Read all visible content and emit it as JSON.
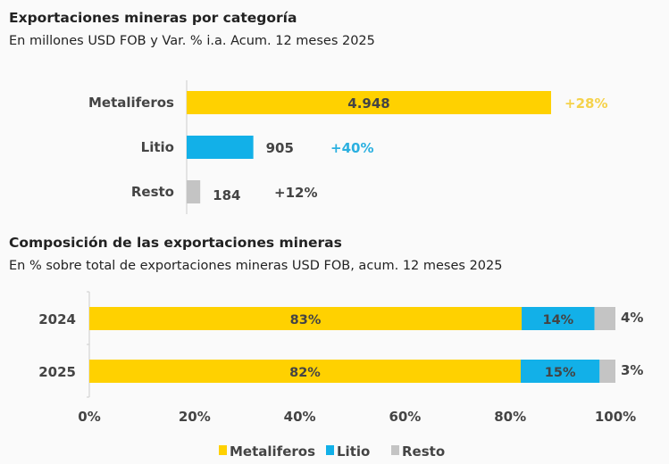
{
  "chart_data": [
    {
      "type": "bar",
      "orientation": "horizontal",
      "title": "Exportaciones mineras por categoría",
      "subtitle": "En millones USD FOB y Var. % i.a. Acum. 12 meses 2025",
      "categories": [
        "Metaliferos",
        "Litio",
        "Resto"
      ],
      "values": [
        4948,
        905,
        184
      ],
      "value_labels": [
        "4.948",
        "905",
        "184"
      ],
      "variation_labels": [
        "+28%",
        "+40%",
        "+12%"
      ],
      "colors": [
        "#FFD100",
        "#12B0E8",
        "#C4C4C4"
      ],
      "variation_colors": [
        "#F5D24A",
        "#2BB0E0",
        "#444444"
      ],
      "grid": false
    },
    {
      "type": "bar",
      "orientation": "horizontal",
      "stacked": true,
      "title": "Composición de las exportaciones mineras",
      "subtitle": "En % sobre total de exportaciones mineras USD FOB, acum. 12 meses 2025",
      "categories": [
        "2024",
        "2025"
      ],
      "series": [
        {
          "name": "Metaliferos",
          "values": [
            83,
            82
          ],
          "color": "#FFD100"
        },
        {
          "name": "Litio",
          "values": [
            14,
            15
          ],
          "color": "#12B0E8"
        },
        {
          "name": "Resto",
          "values": [
            4,
            3
          ],
          "color": "#C4C4C4"
        }
      ],
      "xlim": [
        0,
        100
      ],
      "xticks": [
        "0%",
        "20%",
        "40%",
        "60%",
        "80%",
        "100%"
      ],
      "legend": "bottom",
      "grid": false
    }
  ]
}
